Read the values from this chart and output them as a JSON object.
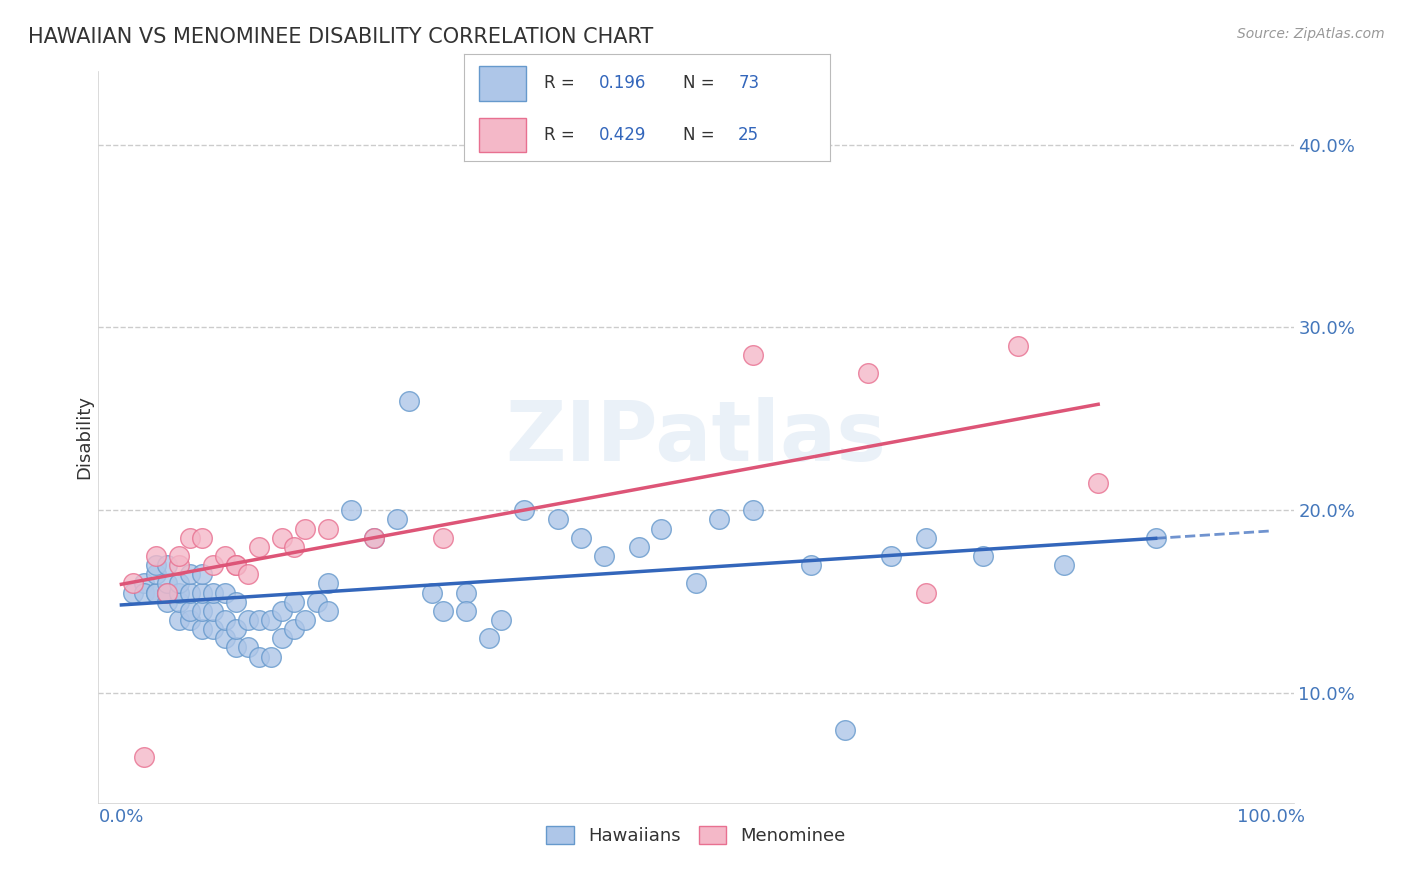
{
  "title": "HAWAIIAN VS MENOMINEE DISABILITY CORRELATION CHART",
  "source": "Source: ZipAtlas.com",
  "xlabel_hawaiians": "Hawaiians",
  "xlabel_menominee": "Menominee",
  "ylabel": "Disability",
  "xlim": [
    -0.02,
    1.02
  ],
  "ylim": [
    0.04,
    0.44
  ],
  "yticks": [
    0.1,
    0.2,
    0.3,
    0.4
  ],
  "ytick_labels": [
    "10.0%",
    "20.0%",
    "30.0%",
    "40.0%"
  ],
  "xtick_labels": [
    "0.0%",
    "100.0%"
  ],
  "R_hawaiian": 0.196,
  "N_hawaiian": 73,
  "R_menominee": 0.429,
  "N_menominee": 25,
  "color_hawaiian_face": "#aec6e8",
  "color_hawaiian_edge": "#6699cc",
  "color_menominee_face": "#f4b8c8",
  "color_menominee_edge": "#e87090",
  "trend_color_hawaiian": "#3366bb",
  "trend_color_menominee": "#dd5577",
  "background_color": "#ffffff",
  "grid_color": "#cccccc",
  "watermark": "ZIPatlas",
  "hawaiian_x": [
    0.01,
    0.02,
    0.02,
    0.03,
    0.03,
    0.03,
    0.03,
    0.04,
    0.04,
    0.04,
    0.04,
    0.04,
    0.05,
    0.05,
    0.05,
    0.05,
    0.06,
    0.06,
    0.06,
    0.06,
    0.07,
    0.07,
    0.07,
    0.07,
    0.08,
    0.08,
    0.08,
    0.09,
    0.09,
    0.09,
    0.1,
    0.1,
    0.1,
    0.11,
    0.11,
    0.12,
    0.12,
    0.13,
    0.13,
    0.14,
    0.14,
    0.15,
    0.15,
    0.16,
    0.17,
    0.18,
    0.18,
    0.2,
    0.22,
    0.24,
    0.25,
    0.27,
    0.28,
    0.3,
    0.3,
    0.32,
    0.33,
    0.35,
    0.38,
    0.4,
    0.42,
    0.45,
    0.47,
    0.5,
    0.52,
    0.55,
    0.6,
    0.63,
    0.67,
    0.7,
    0.75,
    0.82,
    0.9
  ],
  "hawaiian_y": [
    0.155,
    0.16,
    0.155,
    0.155,
    0.155,
    0.165,
    0.17,
    0.15,
    0.155,
    0.155,
    0.16,
    0.17,
    0.14,
    0.15,
    0.155,
    0.16,
    0.14,
    0.145,
    0.155,
    0.165,
    0.135,
    0.145,
    0.155,
    0.165,
    0.135,
    0.145,
    0.155,
    0.13,
    0.14,
    0.155,
    0.125,
    0.135,
    0.15,
    0.125,
    0.14,
    0.12,
    0.14,
    0.12,
    0.14,
    0.13,
    0.145,
    0.135,
    0.15,
    0.14,
    0.15,
    0.145,
    0.16,
    0.2,
    0.185,
    0.195,
    0.26,
    0.155,
    0.145,
    0.155,
    0.145,
    0.13,
    0.14,
    0.2,
    0.195,
    0.185,
    0.175,
    0.18,
    0.19,
    0.16,
    0.195,
    0.2,
    0.17,
    0.08,
    0.175,
    0.185,
    0.175,
    0.17,
    0.185
  ],
  "menominee_x": [
    0.01,
    0.02,
    0.03,
    0.04,
    0.05,
    0.05,
    0.06,
    0.07,
    0.08,
    0.09,
    0.1,
    0.1,
    0.11,
    0.12,
    0.14,
    0.15,
    0.16,
    0.18,
    0.22,
    0.28,
    0.55,
    0.65,
    0.7,
    0.78,
    0.85
  ],
  "menominee_y": [
    0.16,
    0.065,
    0.175,
    0.155,
    0.17,
    0.175,
    0.185,
    0.185,
    0.17,
    0.175,
    0.17,
    0.17,
    0.165,
    0.18,
    0.185,
    0.18,
    0.19,
    0.19,
    0.185,
    0.185,
    0.285,
    0.275,
    0.155,
    0.29,
    0.215
  ]
}
